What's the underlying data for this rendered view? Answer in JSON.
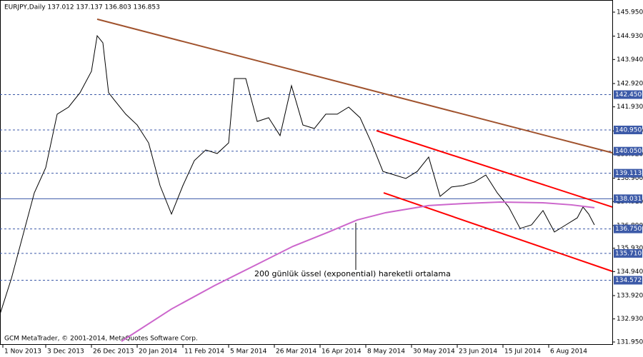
{
  "chart_data": {
    "type": "line",
    "title": "EURJPY,Daily  137.012 137.137 136.803 136.853",
    "footer": "GCM MetaTrader, © 2001-2014, MetaQuotes Software Corp.",
    "annotation": "200 günlük üssel (exponential) hareketli ortalama",
    "xlim": [
      0,
      214.25
    ],
    "xticks": [
      {
        "value": 1,
        "label": "1 Nov 2013"
      },
      {
        "value": 16,
        "label": "3 Dec 2013"
      },
      {
        "value": 32,
        "label": "26 Dec 2013"
      },
      {
        "value": 48,
        "label": "20 Jan 2014"
      },
      {
        "value": 64,
        "label": "11 Feb 2014"
      },
      {
        "value": 80,
        "label": "5 Mar 2014"
      },
      {
        "value": 96,
        "label": "26 Mar 2014"
      },
      {
        "value": 112,
        "label": "16 Apr 2014"
      },
      {
        "value": 128,
        "label": "8 May 2014"
      },
      {
        "value": 144,
        "label": "30 May 2014"
      },
      {
        "value": 160,
        "label": "23 Jun 2014"
      },
      {
        "value": 176,
        "label": "15 Jul 2014"
      },
      {
        "value": 192,
        "label": "6 Aug 2014"
      }
    ],
    "ylim": [
      131.95,
      145.95
    ],
    "yticks": [
      {
        "value": 145.95,
        "label": "145.950"
      },
      {
        "value": 144.93,
        "label": "144.930"
      },
      {
        "value": 143.94,
        "label": "143.940"
      },
      {
        "value": 142.92,
        "label": "142.920"
      },
      {
        "value": 141.93,
        "label": "141.930"
      },
      {
        "value": 140.91,
        "label": "140.910"
      },
      {
        "value": 139.92,
        "label": "139.920"
      },
      {
        "value": 138.9,
        "label": "138.900"
      },
      {
        "value": 137.91,
        "label": "137.910"
      },
      {
        "value": 136.89,
        "label": "136.890"
      },
      {
        "value": 135.93,
        "label": "135.930"
      },
      {
        "value": 134.94,
        "label": "134.940"
      },
      {
        "value": 133.92,
        "label": "133.920"
      },
      {
        "value": 132.93,
        "label": "132.930"
      },
      {
        "value": 131.95,
        "label": "131.950"
      }
    ],
    "series": [
      {
        "name": "EURJPY",
        "color": "#000000",
        "x": [
          0,
          4,
          8,
          12,
          16,
          20,
          24,
          28,
          32,
          34,
          36,
          38,
          40,
          44,
          48,
          52,
          56,
          60,
          64,
          68,
          72,
          76,
          80,
          82,
          86,
          90,
          94,
          98,
          102,
          106,
          110,
          114,
          118,
          122,
          126,
          130,
          134,
          138,
          142,
          146,
          150,
          154,
          158,
          162,
          166,
          170,
          174,
          178,
          182,
          186,
          190,
          194,
          198,
          202,
          204,
          206,
          208
        ],
        "values": [
          133.13,
          134.65,
          136.47,
          138.28,
          139.35,
          141.62,
          141.92,
          142.53,
          143.44,
          144.95,
          144.65,
          142.53,
          142.22,
          141.62,
          141.16,
          140.4,
          138.59,
          137.38,
          138.59,
          139.65,
          140.1,
          139.95,
          140.4,
          143.13,
          143.13,
          141.31,
          141.47,
          140.71,
          142.83,
          141.16,
          141.01,
          141.62,
          141.62,
          141.92,
          141.47,
          140.4,
          139.19,
          139.04,
          138.89,
          139.19,
          139.8,
          138.13,
          138.53,
          138.59,
          138.74,
          139.04,
          138.28,
          137.68,
          136.77,
          136.92,
          137.53,
          136.62,
          136.92,
          137.22,
          137.68,
          137.38,
          136.92
        ]
      },
      {
        "name": "EMA 200",
        "color": "#cc66cc",
        "x": [
          42.5,
          60,
          75,
          90,
          102.5,
          115,
          125,
          135,
          150,
          162.5,
          175,
          190,
          200,
          208
        ],
        "values": [
          131.98,
          133.35,
          134.34,
          135.25,
          136.01,
          136.62,
          137.13,
          137.44,
          137.74,
          137.83,
          137.89,
          137.86,
          137.77,
          137.65
        ]
      }
    ],
    "trendlines": [
      {
        "color": "#a0522d",
        "x": [
          34,
          214.25
        ],
        "values": [
          145.65,
          139.98
        ]
      },
      {
        "color": "#ff0000",
        "x": [
          131.75,
          214.25
        ],
        "values": [
          140.92,
          137.68
        ]
      },
      {
        "color": "#ff0000",
        "x": [
          134.25,
          214.25
        ],
        "values": [
          138.28,
          134.95
        ]
      }
    ],
    "levels": [
      {
        "value": 142.45,
        "label": "142.450",
        "style": "dashed"
      },
      {
        "value": 140.95,
        "label": "140.950",
        "style": "dashed"
      },
      {
        "value": 140.05,
        "label": "140.050",
        "style": "dashed"
      },
      {
        "value": 139.113,
        "label": "139.113",
        "style": "dashed"
      },
      {
        "value": 138.031,
        "label": "138.031",
        "style": "solid"
      },
      {
        "value": 136.75,
        "label": "136.750",
        "style": "dashed"
      },
      {
        "value": 135.71,
        "label": "135.710",
        "style": "dashed"
      },
      {
        "value": 134.572,
        "label": "134.572",
        "style": "dashed"
      }
    ],
    "level_color": "#3c5aa8"
  }
}
